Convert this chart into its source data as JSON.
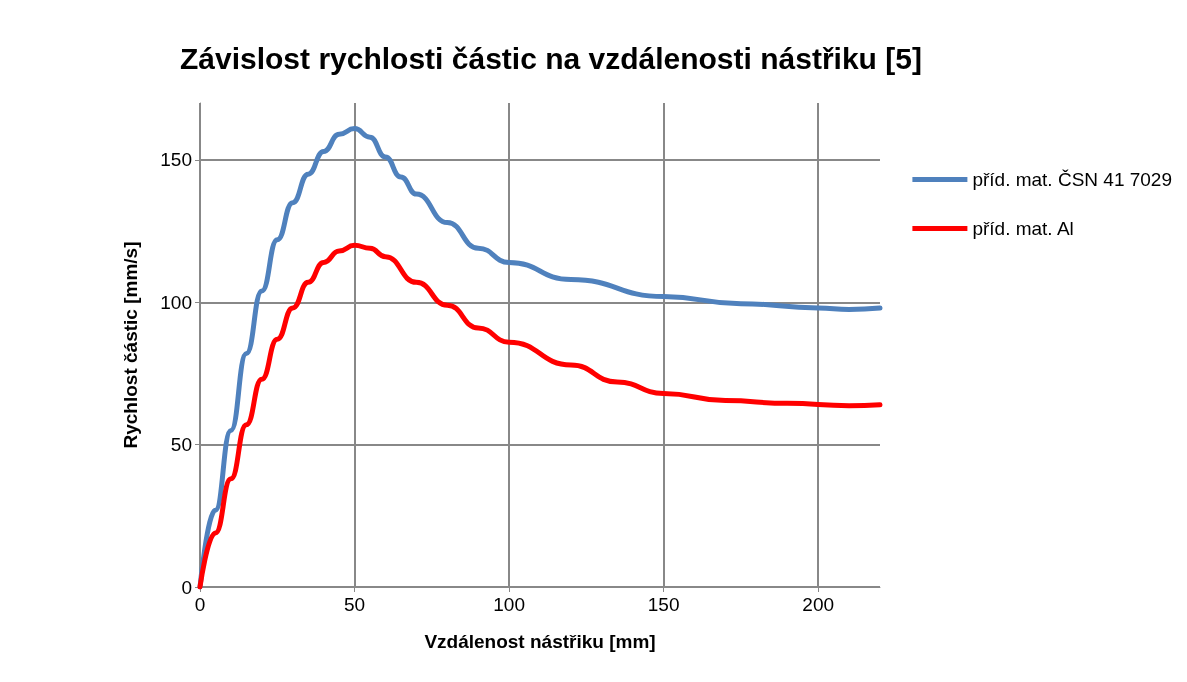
{
  "chart_data": {
    "type": "line",
    "title": "Závislost rychlosti částic na vzdálenosti nástřiku [5]",
    "xlabel": "Vzdálenost nástřiku [mm]",
    "ylabel": "Rychlost částic [mm/s]",
    "xlim": [
      0,
      220
    ],
    "xticks": [
      0,
      50,
      100,
      150,
      200
    ],
    "ylim": [
      0,
      170
    ],
    "yticks": [
      0,
      50,
      100,
      150
    ],
    "grid": true,
    "legend": "right",
    "marker": "none",
    "line_style": "solid",
    "series": [
      {
        "name": "příd. mat. ČSN 41 7029",
        "color": "#4f81bd",
        "x": [
          0,
          5,
          10,
          15,
          20,
          25,
          30,
          35,
          40,
          45,
          50,
          55,
          60,
          65,
          70,
          80,
          90,
          100,
          120,
          150,
          175,
          200,
          210,
          220
        ],
        "values": [
          0,
          27,
          55,
          82,
          104,
          122,
          135,
          145,
          153,
          159,
          161,
          158,
          151,
          144,
          138,
          128,
          119,
          114,
          108,
          102,
          99.5,
          98,
          97.5,
          98
        ]
      },
      {
        "name": "příd. mat. Al",
        "color": "#ff0000",
        "x": [
          0,
          5,
          10,
          15,
          20,
          25,
          30,
          35,
          40,
          45,
          50,
          55,
          60,
          70,
          80,
          90,
          100,
          120,
          135,
          150,
          170,
          190,
          210,
          220
        ],
        "values": [
          0,
          19,
          38,
          57,
          73,
          87,
          98,
          107,
          114,
          118,
          120,
          119,
          116,
          107,
          99,
          91,
          86,
          78,
          72,
          68,
          65.5,
          64.5,
          63.7,
          64
        ]
      }
    ]
  }
}
